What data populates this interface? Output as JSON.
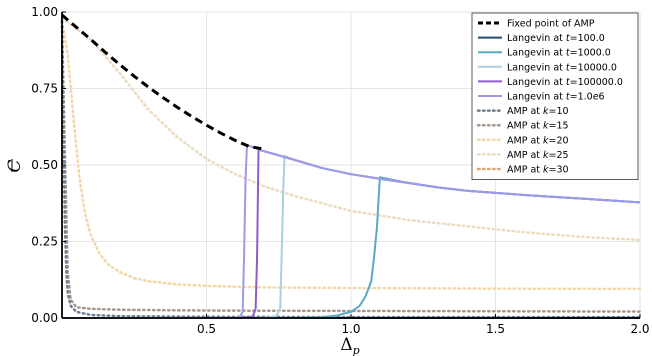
{
  "chart_data": {
    "type": "line",
    "title": "",
    "xlabel": "Δ",
    "xlabel_sub": "p",
    "ylabel": "C",
    "xlim": [
      0.0,
      2.0
    ],
    "ylim": [
      0.0,
      1.0
    ],
    "x_ticks": [
      {
        "v": 0.5,
        "label": "0.5"
      },
      {
        "v": 1.0,
        "label": "1.0"
      },
      {
        "v": 1.5,
        "label": "1.5"
      },
      {
        "v": 2.0,
        "label": "2.0"
      }
    ],
    "y_ticks": [
      {
        "v": 0.0,
        "label": "0.00"
      },
      {
        "v": 0.25,
        "label": "0.25"
      },
      {
        "v": 0.5,
        "label": "0.50"
      },
      {
        "v": 0.75,
        "label": "0.75"
      },
      {
        "v": 1.0,
        "label": "1.00"
      }
    ],
    "grid": true,
    "legend_position": "top-right",
    "series": [
      {
        "name": "Fixed point of AMP",
        "color": "#000000",
        "dash": "dashed",
        "width": 3,
        "x": [
          0.0,
          0.05,
          0.1,
          0.15,
          0.2,
          0.25,
          0.3,
          0.35,
          0.4,
          0.45,
          0.5,
          0.55,
          0.6,
          0.65,
          0.7
        ],
        "y": [
          0.99,
          0.95,
          0.91,
          0.868,
          0.828,
          0.79,
          0.754,
          0.72,
          0.688,
          0.658,
          0.63,
          0.604,
          0.58,
          0.56,
          0.552
        ]
      },
      {
        "name": "Langevin at t=100.0",
        "name_parts": [
          "Langevin at ",
          "t",
          "=100.0"
        ],
        "color": "#1b4f6b",
        "dash": "solid",
        "width": 2,
        "x": [
          0.0,
          0.5,
          1.0,
          1.5,
          2.0
        ],
        "y": [
          0.0,
          0.0,
          0.0,
          0.0,
          0.0
        ]
      },
      {
        "name": "Langevin at t=1000.0",
        "name_parts": [
          "Langevin at ",
          "t",
          "=1000.0"
        ],
        "color": "#5ba8c4",
        "dash": "solid",
        "width": 2,
        "x": [
          0.0,
          0.8,
          0.9,
          0.95,
          1.0,
          1.03,
          1.05,
          1.07,
          1.08,
          1.09,
          1.1,
          1.2,
          1.3,
          1.4,
          1.5,
          1.6,
          1.7,
          1.8,
          1.9,
          2.0
        ],
        "y": [
          0.0,
          0.0,
          0.003,
          0.008,
          0.02,
          0.04,
          0.07,
          0.12,
          0.2,
          0.3,
          0.46,
          0.441,
          0.427,
          0.416,
          0.409,
          0.402,
          0.396,
          0.39,
          0.384,
          0.378
        ]
      },
      {
        "name": "Langevin at t=10000.0",
        "name_parts": [
          "Langevin at ",
          "t",
          "=10000.0"
        ],
        "color": "#a9cfe0",
        "dash": "solid",
        "width": 2,
        "x": [
          0.0,
          0.7,
          0.74,
          0.755,
          0.76,
          0.765,
          0.77,
          0.8,
          0.9,
          1.0,
          1.1,
          1.2,
          1.3,
          1.4,
          1.5,
          1.6,
          1.7,
          1.8,
          1.9,
          2.0
        ],
        "y": [
          0.0,
          0.0,
          0.005,
          0.03,
          0.2,
          0.4,
          0.53,
          0.518,
          0.49,
          0.47,
          0.455,
          0.441,
          0.427,
          0.416,
          0.409,
          0.402,
          0.396,
          0.39,
          0.384,
          0.378
        ]
      },
      {
        "name": "Langevin at t=100000.0",
        "name_parts": [
          "Langevin at ",
          "t",
          "=100000.0"
        ],
        "color": "#8c5cc7",
        "dash": "solid",
        "width": 2,
        "x": [
          0.0,
          0.62,
          0.66,
          0.67,
          0.675,
          0.68,
          0.7,
          0.8,
          0.9,
          1.0,
          1.1,
          1.2,
          1.3,
          1.4,
          1.5,
          1.6,
          1.7,
          1.8,
          1.9,
          2.0
        ],
        "y": [
          0.0,
          0.0,
          0.005,
          0.03,
          0.2,
          0.55,
          0.545,
          0.518,
          0.49,
          0.47,
          0.455,
          0.441,
          0.427,
          0.416,
          0.409,
          0.402,
          0.396,
          0.39,
          0.384,
          0.378
        ]
      },
      {
        "name": "Langevin at t=1.0e6",
        "name_parts": [
          "Langevin at ",
          "t",
          "=1.0e6"
        ],
        "color": "#9b9be8",
        "dash": "solid",
        "width": 2,
        "x": [
          0.0,
          0.6,
          0.615,
          0.625,
          0.63,
          0.635,
          0.64,
          0.7,
          0.8,
          0.9,
          1.0,
          1.1,
          1.2,
          1.3,
          1.4,
          1.5,
          1.6,
          1.7,
          1.8,
          1.9,
          2.0
        ],
        "y": [
          0.0,
          0.0,
          0.003,
          0.02,
          0.2,
          0.45,
          0.565,
          0.545,
          0.518,
          0.49,
          0.47,
          0.455,
          0.441,
          0.427,
          0.416,
          0.409,
          0.402,
          0.396,
          0.39,
          0.384,
          0.378
        ]
      },
      {
        "name": "AMP at k=10",
        "name_parts": [
          "AMP at ",
          "k",
          "=10"
        ],
        "color": "#6f7f91",
        "dash": "dotted",
        "width": 2.5,
        "x": [
          0.0,
          0.005,
          0.01,
          0.015,
          0.02,
          0.03,
          0.05,
          0.1,
          0.2,
          0.5,
          1.0,
          2.0
        ],
        "y": [
          0.97,
          0.6,
          0.3,
          0.15,
          0.08,
          0.04,
          0.02,
          0.01,
          0.006,
          0.004,
          0.003,
          0.003
        ]
      },
      {
        "name": "AMP at k=15",
        "name_parts": [
          "AMP at ",
          "k",
          "=15"
        ],
        "color": "#a5978e",
        "dash": "dotted",
        "width": 2.5,
        "x": [
          0.0,
          0.01,
          0.02,
          0.03,
          0.05,
          0.1,
          0.2,
          0.4,
          0.6,
          1.0,
          1.5,
          2.0
        ],
        "y": [
          0.97,
          0.55,
          0.15,
          0.06,
          0.035,
          0.03,
          0.027,
          0.025,
          0.024,
          0.023,
          0.022,
          0.021
        ]
      },
      {
        "name": "AMP at k=20",
        "name_parts": [
          "AMP at ",
          "k",
          "=20"
        ],
        "color": "#f3d7a6",
        "dash": "dotted",
        "width": 2.5,
        "x": [
          0.0,
          0.02,
          0.04,
          0.06,
          0.08,
          0.1,
          0.13,
          0.16,
          0.2,
          0.25,
          0.3,
          0.4,
          0.5,
          0.7,
          1.0,
          1.5,
          2.0
        ],
        "y": [
          0.97,
          0.86,
          0.65,
          0.46,
          0.34,
          0.27,
          0.21,
          0.175,
          0.15,
          0.13,
          0.12,
          0.11,
          0.105,
          0.1,
          0.098,
          0.096,
          0.095
        ]
      },
      {
        "name": "AMP at k=25",
        "name_parts": [
          "AMP at ",
          "k",
          "=25"
        ],
        "color": "#ecdcbf",
        "dash": "dotted",
        "width": 2.5,
        "x": [
          0.0,
          0.1,
          0.2,
          0.3,
          0.4,
          0.5,
          0.6,
          0.7,
          0.8,
          1.0,
          1.2,
          1.4,
          1.6,
          1.8,
          2.0
        ],
        "y": [
          0.98,
          0.91,
          0.8,
          0.68,
          0.59,
          0.52,
          0.47,
          0.43,
          0.4,
          0.35,
          0.32,
          0.3,
          0.28,
          0.265,
          0.255
        ]
      },
      {
        "name": "AMP at k=30",
        "name_parts": [
          "AMP at ",
          "k",
          "=30"
        ],
        "color": "#d9a477",
        "dash": "dotted",
        "width": 2.5,
        "x": [
          0.0,
          0.1,
          0.2,
          0.3,
          0.4,
          0.5,
          0.6,
          0.7,
          0.8,
          0.9,
          1.0,
          1.2,
          1.4,
          1.6,
          1.8,
          2.0
        ],
        "y": [
          0.98,
          0.91,
          0.83,
          0.755,
          0.69,
          0.63,
          0.58,
          0.54,
          0.51,
          0.485,
          0.465,
          0.43,
          0.405,
          0.385,
          0.37,
          0.355
        ]
      }
    ]
  }
}
